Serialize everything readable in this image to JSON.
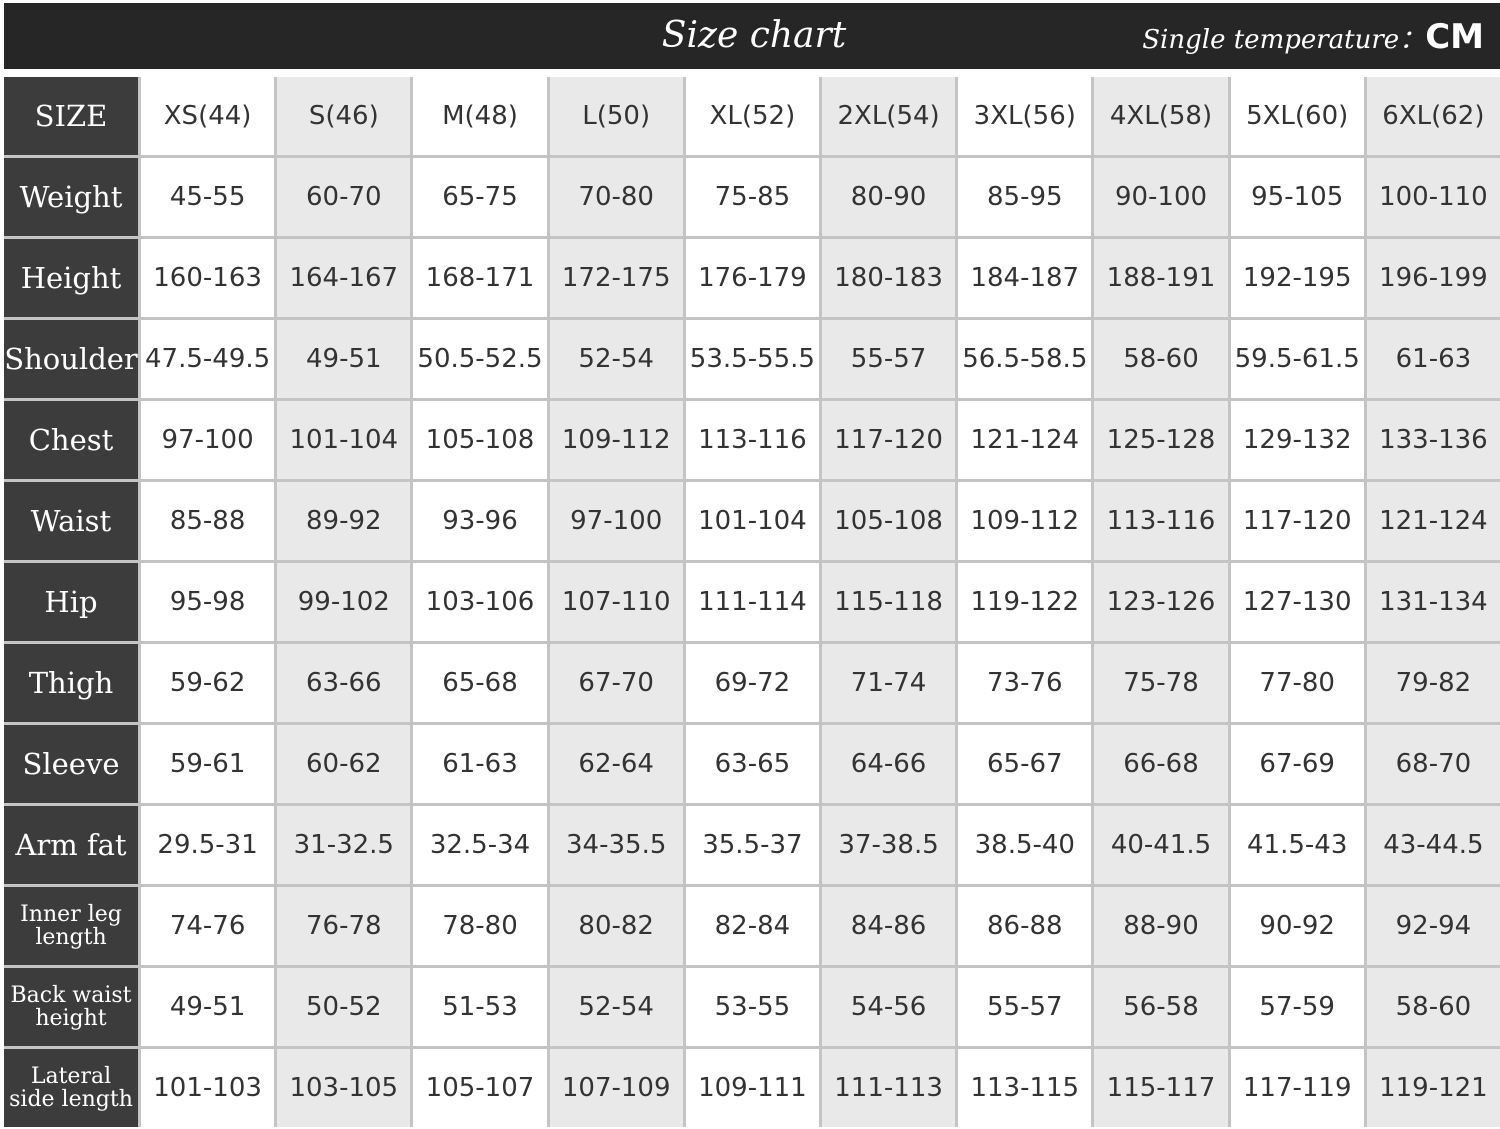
{
  "header": {
    "title": "Size chart",
    "unit_label": "Single temperature：",
    "unit": "CM"
  },
  "table": {
    "columns": [
      "SIZE",
      "XS(44)",
      "S(46)",
      "M(48)",
      "L(50)",
      "XL(52)",
      "2XL(54)",
      "3XL(56)",
      "4XL(58)",
      "5XL(60)",
      "6XL(62)"
    ],
    "rows": [
      [
        "Weight",
        "45-55",
        "60-70",
        "65-75",
        "70-80",
        "75-85",
        "80-90",
        "85-95",
        "90-100",
        "95-105",
        "100-110"
      ],
      [
        "Height",
        "160-163",
        "164-167",
        "168-171",
        "172-175",
        "176-179",
        "180-183",
        "184-187",
        "188-191",
        "192-195",
        "196-199"
      ],
      [
        "Shoulder",
        "47.5-49.5",
        "49-51",
        "50.5-52.5",
        "52-54",
        "53.5-55.5",
        "55-57",
        "56.5-58.5",
        "58-60",
        "59.5-61.5",
        "61-63"
      ],
      [
        "Chest",
        "97-100",
        "101-104",
        "105-108",
        "109-112",
        "113-116",
        "117-120",
        "121-124",
        "125-128",
        "129-132",
        "133-136"
      ],
      [
        "Waist",
        "85-88",
        "89-92",
        "93-96",
        "97-100",
        "101-104",
        "105-108",
        "109-112",
        "113-116",
        "117-120",
        "121-124"
      ],
      [
        "Hip",
        "95-98",
        "99-102",
        "103-106",
        "107-110",
        "111-114",
        "115-118",
        "119-122",
        "123-126",
        "127-130",
        "131-134"
      ],
      [
        "Thigh",
        "59-62",
        "63-66",
        "65-68",
        "67-70",
        "69-72",
        "71-74",
        "73-76",
        "75-78",
        "77-80",
        "79-82"
      ],
      [
        "Sleeve",
        "59-61",
        "60-62",
        "61-63",
        "62-64",
        "63-65",
        "64-66",
        "65-67",
        "66-68",
        "67-69",
        "68-70"
      ],
      [
        "Arm fat",
        "29.5-31",
        "31-32.5",
        "32.5-34",
        "34-35.5",
        "35.5-37",
        "37-38.5",
        "38.5-40",
        "40-41.5",
        "41.5-43",
        "43-44.5"
      ],
      [
        "Inner leg length",
        "74-76",
        "76-78",
        "78-80",
        "80-82",
        "82-84",
        "84-86",
        "86-88",
        "88-90",
        "90-92",
        "92-94"
      ],
      [
        "Back waist height",
        "49-51",
        "50-52",
        "51-53",
        "52-54",
        "53-55",
        "54-56",
        "55-57",
        "56-58",
        "57-59",
        "58-60"
      ],
      [
        "Lateral side length",
        "101-103",
        "103-105",
        "105-107",
        "107-109",
        "109-111",
        "111-113",
        "113-115",
        "115-117",
        "117-119",
        "119-121"
      ]
    ]
  }
}
